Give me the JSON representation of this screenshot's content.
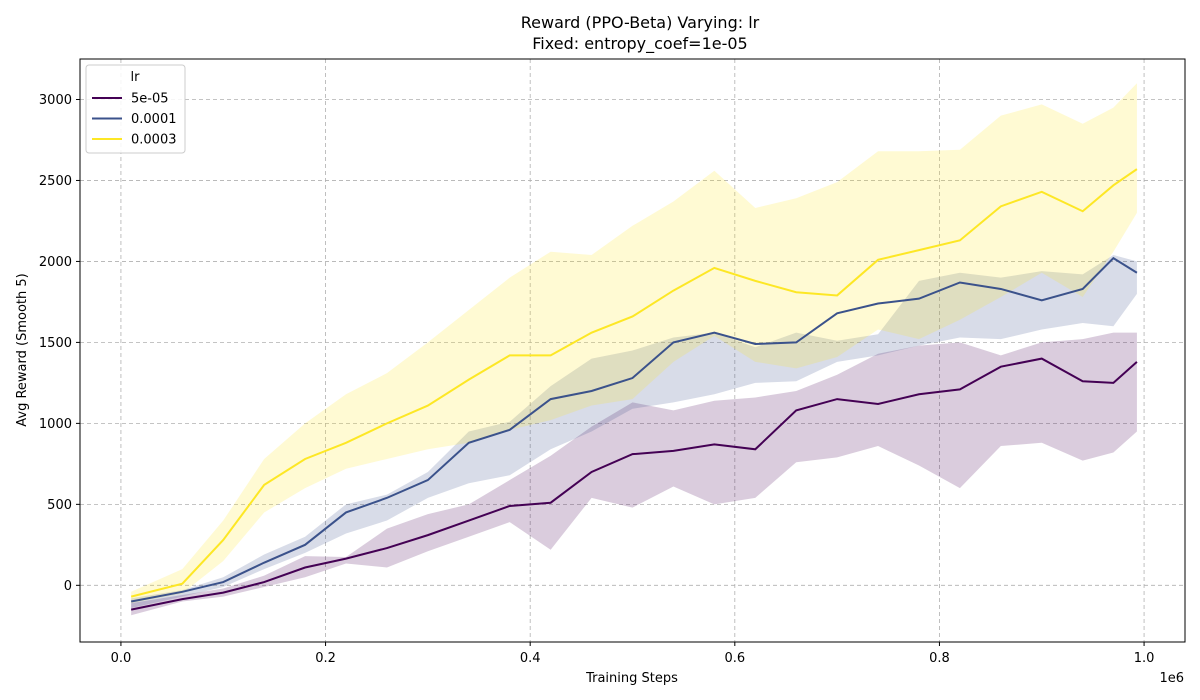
{
  "chart_data": {
    "type": "line",
    "title": "Reward (PPO-Beta) Varying: lr",
    "subtitle": "Fixed: entropy_coef=1e-05",
    "xlabel": "Training Steps",
    "ylabel": "Avg Reward (Smooth 5)",
    "x_offset_label": "1e6",
    "xlim": [
      -0.04,
      1.04
    ],
    "ylim": [
      -350,
      3250
    ],
    "x_ticks": [
      0.0,
      0.2,
      0.4,
      0.6,
      0.8,
      1.0
    ],
    "x_tick_labels": [
      "0.0",
      "0.2",
      "0.4",
      "0.6",
      "0.8",
      "1.0"
    ],
    "y_ticks": [
      0,
      500,
      1000,
      1500,
      2000,
      2500,
      3000
    ],
    "y_tick_labels": [
      "0",
      "500",
      "1000",
      "1500",
      "2000",
      "2500",
      "3000"
    ],
    "grid": true,
    "legend": {
      "title": "lr",
      "placement": "top-left"
    },
    "x": [
      0.01,
      0.06,
      0.1,
      0.14,
      0.18,
      0.22,
      0.26,
      0.3,
      0.34,
      0.38,
      0.42,
      0.46,
      0.5,
      0.54,
      0.58,
      0.62,
      0.66,
      0.7,
      0.74,
      0.78,
      0.82,
      0.86,
      0.9,
      0.94,
      0.97,
      0.993
    ],
    "series": [
      {
        "name": "5e-05",
        "color": "#440154",
        "values": [
          -150,
          -85,
          -45,
          20,
          110,
          165,
          230,
          310,
          400,
          490,
          510,
          700,
          810,
          830,
          870,
          840,
          1080,
          1150,
          1120,
          1180,
          1210,
          1350,
          1400,
          1260,
          1250,
          1380
        ],
        "upper": [
          -110,
          -60,
          -20,
          60,
          180,
          175,
          350,
          440,
          500,
          650,
          800,
          980,
          1130,
          1080,
          1140,
          1160,
          1200,
          1300,
          1430,
          1480,
          1500,
          1420,
          1500,
          1520,
          1560,
          1560
        ],
        "lower": [
          -185,
          -100,
          -70,
          -10,
          50,
          135,
          110,
          210,
          300,
          390,
          220,
          540,
          480,
          610,
          500,
          540,
          760,
          790,
          860,
          740,
          600,
          860,
          880,
          770,
          820,
          950
        ]
      },
      {
        "name": "0.0001",
        "color": "#3b528b",
        "values": [
          -100,
          -40,
          20,
          140,
          250,
          450,
          540,
          650,
          880,
          960,
          1150,
          1200,
          1280,
          1500,
          1560,
          1490,
          1500,
          1680,
          1740,
          1770,
          1870,
          1830,
          1760,
          1830,
          2020,
          1930
        ],
        "upper": [
          -80,
          -30,
          50,
          190,
          300,
          500,
          560,
          700,
          950,
          1010,
          1230,
          1400,
          1450,
          1530,
          1560,
          1470,
          1560,
          1510,
          1550,
          1880,
          1930,
          1900,
          1940,
          1920,
          2040,
          2000
        ],
        "lower": [
          -140,
          -70,
          -10,
          100,
          200,
          320,
          400,
          540,
          630,
          680,
          840,
          950,
          1090,
          1130,
          1180,
          1250,
          1260,
          1380,
          1420,
          1480,
          1530,
          1520,
          1580,
          1620,
          1600,
          1800
        ]
      },
      {
        "name": "0.0003",
        "color": "#fde725",
        "values": [
          -70,
          10,
          280,
          620,
          780,
          880,
          1000,
          1110,
          1270,
          1420,
          1420,
          1560,
          1660,
          1820,
          1960,
          1880,
          1810,
          1790,
          2010,
          2070,
          2130,
          2340,
          2430,
          2310,
          2470,
          2570
        ],
        "upper": [
          -40,
          100,
          400,
          780,
          1000,
          1180,
          1310,
          1500,
          1700,
          1900,
          2060,
          2040,
          2220,
          2370,
          2560,
          2330,
          2390,
          2490,
          2680,
          2680,
          2690,
          2900,
          2970,
          2850,
          2950,
          3100
        ],
        "lower": [
          -110,
          -50,
          150,
          450,
          600,
          720,
          780,
          840,
          880,
          960,
          1020,
          1110,
          1150,
          1380,
          1540,
          1380,
          1340,
          1410,
          1580,
          1520,
          1640,
          1780,
          1930,
          1780,
          2060,
          2300
        ]
      }
    ]
  }
}
